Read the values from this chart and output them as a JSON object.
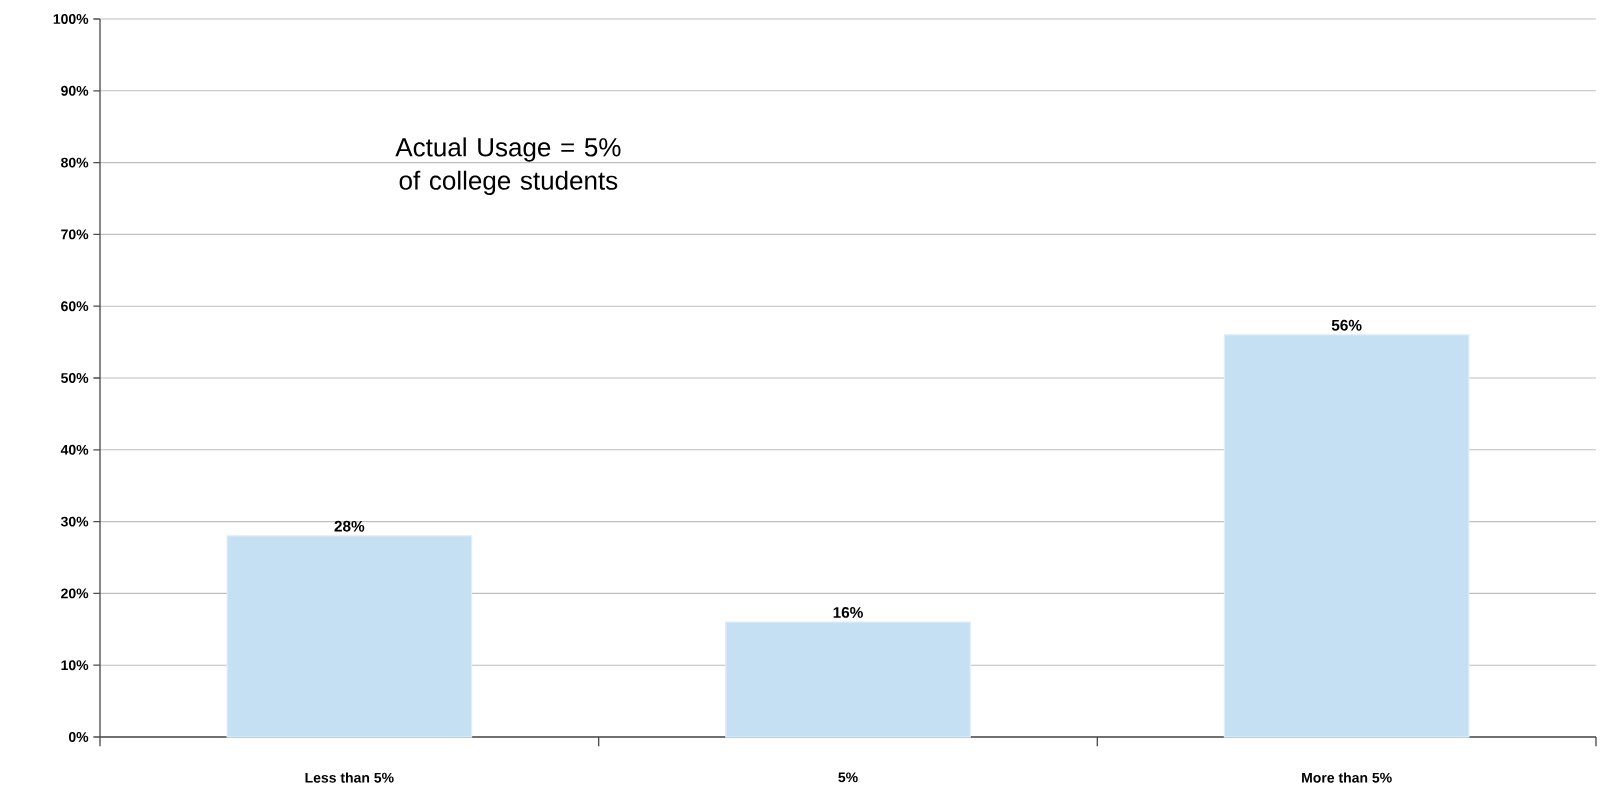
{
  "chart_data": {
    "type": "bar",
    "categories": [
      "Less than 5%",
      "5%",
      "More than 5%"
    ],
    "values": [
      28,
      16,
      56
    ],
    "value_labels": [
      "28%",
      "16%",
      "56%"
    ],
    "color": "#c5dff3",
    "ylim": [
      0,
      100
    ],
    "yticks": [
      {
        "value": 0,
        "label": "0%"
      },
      {
        "value": 10,
        "label": "10%"
      },
      {
        "value": 20,
        "label": "20%"
      },
      {
        "value": 30,
        "label": "30%"
      },
      {
        "value": 40,
        "label": "40%"
      },
      {
        "value": 50,
        "label": "50%"
      },
      {
        "value": 60,
        "label": "60%"
      },
      {
        "value": 70,
        "label": "70%"
      },
      {
        "value": 80,
        "label": "80%"
      },
      {
        "value": 90,
        "label": "90%"
      },
      {
        "value": 100,
        "label": "100%"
      }
    ],
    "grid": "y",
    "annotations": [
      "Actual Usage = 5% of college students"
    ]
  }
}
